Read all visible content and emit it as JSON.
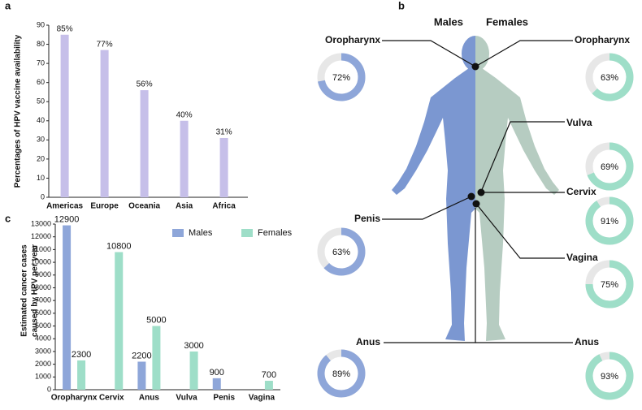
{
  "chart_data": [
    {
      "type": "bar",
      "panel": "a",
      "ylabel": "Percentages of HPV vaccine availability",
      "categories": [
        "Americas",
        "Europe",
        "Oceania",
        "Asia",
        "Africa"
      ],
      "values": [
        85,
        77,
        56,
        40,
        31
      ],
      "value_labels": [
        "85%",
        "77%",
        "56%",
        "40%",
        "31%"
      ],
      "color": "#c6bfe9",
      "ylim": [
        0,
        90
      ],
      "yticks": [
        0,
        10,
        20,
        30,
        40,
        50,
        60,
        70,
        80,
        90
      ]
    },
    {
      "type": "donut",
      "panel": "b",
      "ylim": [
        0,
        100
      ],
      "series": [
        {
          "name": "Males",
          "color": "#8ea6d9",
          "body_color": "#7b97d1",
          "categories": [
            "Oropharynx",
            "Penis",
            "Anus"
          ],
          "values": [
            72,
            63,
            89
          ],
          "value_labels": [
            "72%",
            "63%",
            "89%"
          ]
        },
        {
          "name": "Females",
          "color": "#9edec8",
          "body_color": "#b6ccc1",
          "categories": [
            "Oropharynx",
            "Vulva",
            "Cervix",
            "Vagina",
            "Anus"
          ],
          "values": [
            63,
            69,
            91,
            75,
            93
          ],
          "value_labels": [
            "63%",
            "69%",
            "91%",
            "75%",
            "93%"
          ]
        }
      ]
    },
    {
      "type": "grouped_bar",
      "panel": "c",
      "ylabel": [
        "Estimated cancer cases",
        "caused by HPV per year"
      ],
      "categories": [
        "Oropharynx",
        "Cervix",
        "Anus",
        "Vulva",
        "Penis",
        "Vagina"
      ],
      "series": [
        {
          "name": "Males",
          "color": "#8ea6d9",
          "values": [
            12900,
            null,
            2200,
            null,
            900,
            null
          ]
        },
        {
          "name": "Females",
          "color": "#9edec8",
          "values": [
            2300,
            10800,
            5000,
            3000,
            null,
            700
          ]
        }
      ],
      "ylim": [
        0,
        13000
      ],
      "yticks": [
        0,
        1000,
        2000,
        3000,
        4000,
        5000,
        6000,
        7000,
        8000,
        9000,
        10000,
        11000,
        12000,
        13000
      ]
    }
  ]
}
